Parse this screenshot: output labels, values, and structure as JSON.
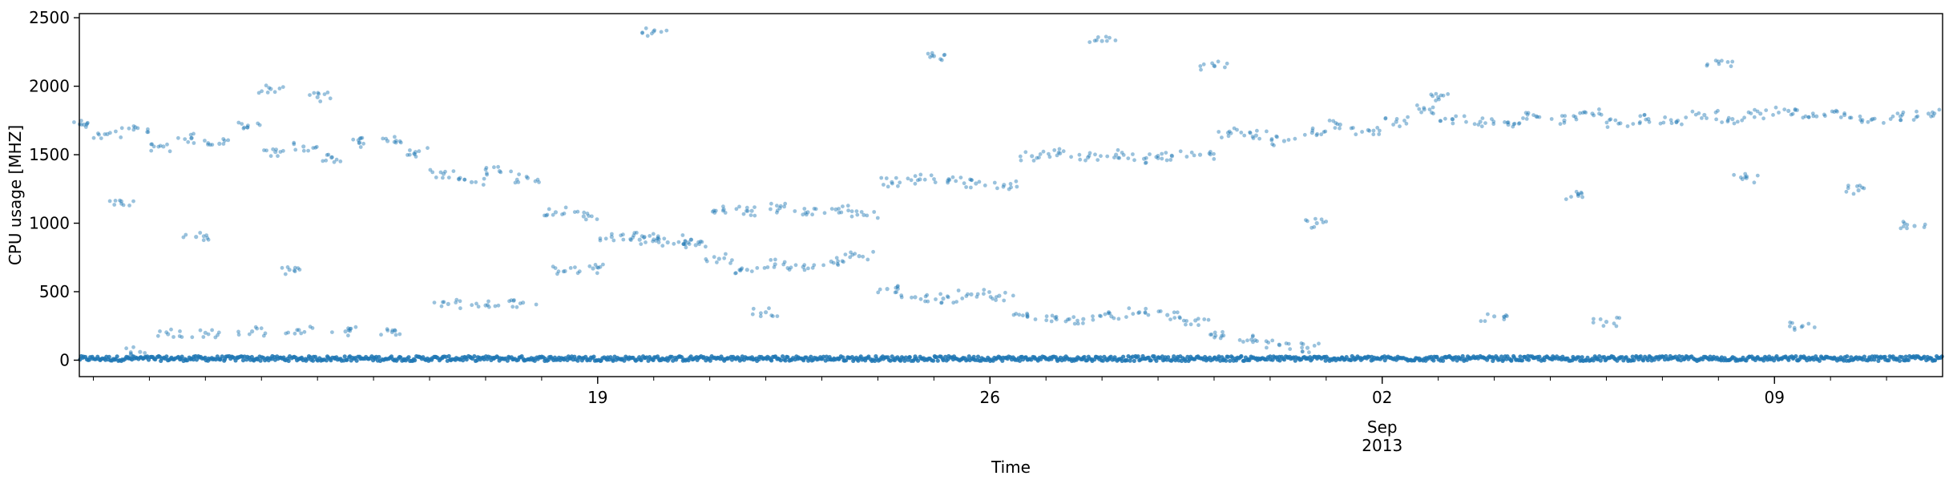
{
  "chart_data": {
    "type": "scatter",
    "title": "",
    "xlabel": "Time",
    "ylabel": "CPU usage [MHZ]",
    "xlim": [
      "2013-08-09T18:00",
      "2013-09-12T00:00"
    ],
    "ylim": [
      -120,
      2530
    ],
    "y_ticks": [
      0,
      500,
      1000,
      1500,
      2000,
      2500
    ],
    "x_major_ticks": [
      {
        "date": "2013-08-19",
        "label": "19"
      },
      {
        "date": "2013-08-26",
        "label": "26"
      },
      {
        "date": "2013-09-02",
        "label": "02"
      },
      {
        "date": "2013-09-09",
        "label": "09"
      }
    ],
    "x_secondary_label": {
      "date": "2013-09-02",
      "month": "Sep",
      "year": "2013"
    },
    "x_minor_tick_interval": "1 day",
    "grid": false,
    "legend": "none",
    "marker": {
      "color": "#1f77b4",
      "alpha": 0.45
    },
    "series": [
      {
        "points": [
          [
            "2013-08-09T20:00",
            1720
          ],
          [
            "2013-08-10T06:00",
            1650
          ],
          [
            "2013-08-10T18:00",
            1700
          ],
          [
            "2013-08-11T06:00",
            1560
          ],
          [
            "2013-08-11T18:00",
            1620
          ],
          [
            "2013-08-12T06:00",
            1580
          ],
          [
            "2013-08-12T18:00",
            1700
          ],
          [
            "2013-08-13T06:00",
            1520
          ],
          [
            "2013-08-13T18:00",
            1560
          ],
          [
            "2013-08-14T06:00",
            1480
          ],
          [
            "2013-08-14T18:00",
            1590
          ],
          [
            "2013-08-15T06:00",
            1600
          ],
          [
            "2013-08-15T18:00",
            1520
          ],
          [
            "2013-08-16T06:00",
            1360
          ],
          [
            "2013-08-16T18:00",
            1300
          ],
          [
            "2013-08-17T06:00",
            1380
          ],
          [
            "2013-08-17T18:00",
            1330
          ],
          [
            "2013-08-18T06:00",
            1080
          ],
          [
            "2013-08-18T18:00",
            1050
          ],
          [
            "2013-08-19T06:00",
            900
          ],
          [
            "2013-08-19T18:00",
            880
          ],
          [
            "2013-08-20T06:00",
            860
          ],
          [
            "2013-08-20T18:00",
            840
          ],
          [
            "2013-08-21T06:00",
            1100
          ],
          [
            "2013-08-21T18:00",
            1090
          ],
          [
            "2013-08-22T06:00",
            1110
          ],
          [
            "2013-08-22T18:00",
            1080
          ],
          [
            "2013-08-23T06:00",
            1100
          ],
          [
            "2013-08-23T18:00",
            1060
          ],
          [
            "2013-08-24T06:00",
            1300
          ],
          [
            "2013-08-24T18:00",
            1320
          ],
          [
            "2013-08-25T06:00",
            1310
          ],
          [
            "2013-08-25T18:00",
            1290
          ],
          [
            "2013-08-26T06:00",
            1280
          ],
          [
            "2013-08-26T18:00",
            1490
          ],
          [
            "2013-08-27T06:00",
            1510
          ],
          [
            "2013-08-27T18:00",
            1480
          ],
          [
            "2013-08-28T06:00",
            1500
          ],
          [
            "2013-08-28T18:00",
            1470
          ],
          [
            "2013-08-29T06:00",
            1490
          ],
          [
            "2013-08-29T18:00",
            1500
          ],
          [
            "2013-08-30T06:00",
            1660
          ],
          [
            "2013-08-30T18:00",
            1640
          ],
          [
            "2013-08-31T06:00",
            1600
          ],
          [
            "2013-08-31T18:00",
            1660
          ],
          [
            "2013-09-01T06:00",
            1720
          ],
          [
            "2013-09-01T18:00",
            1680
          ],
          [
            "2013-09-02T06:00",
            1740
          ],
          [
            "2013-09-02T18:00",
            1830
          ],
          [
            "2013-09-03T06:00",
            1760
          ],
          [
            "2013-09-03T18:00",
            1740
          ],
          [
            "2013-09-04T06:00",
            1720
          ],
          [
            "2013-09-04T18:00",
            1780
          ],
          [
            "2013-09-05T06:00",
            1750
          ],
          [
            "2013-09-05T18:00",
            1800
          ],
          [
            "2013-09-06T06:00",
            1730
          ],
          [
            "2013-09-06T18:00",
            1760
          ],
          [
            "2013-09-07T06:00",
            1740
          ],
          [
            "2013-09-07T18:00",
            1790
          ],
          [
            "2013-09-08T06:00",
            1760
          ],
          [
            "2013-09-08T18:00",
            1800
          ],
          [
            "2013-09-09T06:00",
            1820
          ],
          [
            "2013-09-09T18:00",
            1780
          ],
          [
            "2013-09-10T06:00",
            1790
          ],
          [
            "2013-09-10T18:00",
            1760
          ],
          [
            "2013-09-11T06:00",
            1780
          ],
          [
            "2013-09-11T18:00",
            1800
          ],
          [
            "2013-08-10T20:00",
            60
          ],
          [
            "2013-08-11T08:00",
            190
          ],
          [
            "2013-08-12T00:00",
            200
          ],
          [
            "2013-08-12T20:00",
            210
          ],
          [
            "2013-08-13T16:00",
            220
          ],
          [
            "2013-08-14T12:00",
            210
          ],
          [
            "2013-08-15T08:00",
            205
          ],
          [
            "2013-08-16T08:00",
            410
          ],
          [
            "2013-08-17T00:00",
            400
          ],
          [
            "2013-08-17T16:00",
            420
          ],
          [
            "2013-08-18T10:00",
            650
          ],
          [
            "2013-08-18T22:00",
            670
          ],
          [
            "2013-08-19T20:00",
            900
          ],
          [
            "2013-08-20T16:00",
            880
          ],
          [
            "2013-08-21T04:00",
            740
          ],
          [
            "2013-08-21T16:00",
            660
          ],
          [
            "2013-08-22T04:00",
            700
          ],
          [
            "2013-08-22T16:00",
            680
          ],
          [
            "2013-08-23T04:00",
            720
          ],
          [
            "2013-08-23T16:00",
            760
          ],
          [
            "2013-08-24T04:00",
            520
          ],
          [
            "2013-08-24T16:00",
            460
          ],
          [
            "2013-08-25T04:00",
            450
          ],
          [
            "2013-08-25T16:00",
            480
          ],
          [
            "2013-08-26T04:00",
            470
          ],
          [
            "2013-08-26T16:00",
            330
          ],
          [
            "2013-08-27T04:00",
            310
          ],
          [
            "2013-08-27T16:00",
            300
          ],
          [
            "2013-08-28T04:00",
            320
          ],
          [
            "2013-08-28T16:00",
            350
          ],
          [
            "2013-08-29T04:00",
            330
          ],
          [
            "2013-08-29T16:00",
            290
          ],
          [
            "2013-08-30T04:00",
            180
          ],
          [
            "2013-08-30T16:00",
            150
          ],
          [
            "2013-08-31T04:00",
            110
          ],
          [
            "2013-08-31T16:00",
            90
          ],
          [
            "2013-08-13T04:00",
            1980
          ],
          [
            "2013-08-20T00:00",
            2400
          ],
          [
            "2013-08-25T00:00",
            2220
          ],
          [
            "2013-08-28T00:00",
            2330
          ],
          [
            "2013-08-30T00:00",
            2150
          ],
          [
            "2013-09-03T00:00",
            1920
          ],
          [
            "2013-09-08T00:00",
            2180
          ],
          [
            "2013-08-14T00:00",
            1920
          ],
          [
            "2013-08-10T12:00",
            1160
          ],
          [
            "2013-08-11T20:00",
            900
          ],
          [
            "2013-08-13T12:00",
            660
          ],
          [
            "2013-08-22T00:00",
            350
          ],
          [
            "2013-09-04T00:00",
            320
          ],
          [
            "2013-09-06T00:00",
            280
          ],
          [
            "2013-09-09T12:00",
            250
          ],
          [
            "2013-09-05T12:00",
            1200
          ],
          [
            "2013-09-08T12:00",
            1330
          ],
          [
            "2013-09-10T12:00",
            1240
          ],
          [
            "2013-09-11T12:00",
            980
          ],
          [
            "2013-08-31T20:00",
            1000
          ]
        ]
      }
    ],
    "background_band": {
      "y_center": 5,
      "y_spread": 35
    }
  }
}
